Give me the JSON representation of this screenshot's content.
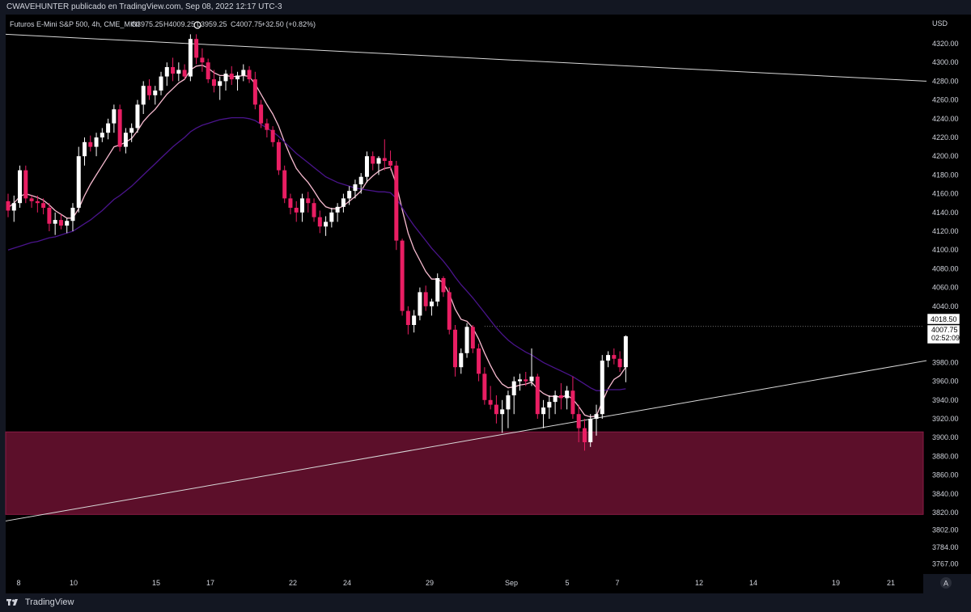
{
  "header": {
    "published_line": "CWAVEHUNTER publicado en TradingView.com, Sep 08, 2022 12:17 UTC-3"
  },
  "symbol_bar": {
    "symbol": "Futuros E-Mini S&P 500, 4h, CME_MINI",
    "open": "O3975.25",
    "high": "H4009.25",
    "low": "L3959.25",
    "close": "C4007.75",
    "change": "+32.50 (+0.82%)"
  },
  "currency_label": "USD",
  "price_tags": {
    "last_price": "4007.75",
    "countdown": "02:52:09",
    "level_line": "4018.50"
  },
  "footer": {
    "brand": "TradingView"
  },
  "axis_buttons": {
    "auto_scale": "A"
  },
  "colors": {
    "background": "#000000",
    "panel": "#131722",
    "bull_candle": "#ffffff",
    "bear_candle": "#e91e63",
    "fast_ma": "#f8bbd0",
    "slow_ma": "#4a148c",
    "zone_fill": "#5c0f2a",
    "trendline": "#d9d9d9"
  },
  "chart_data": {
    "type": "candlestick",
    "timeframe": "4h",
    "currency": "USD",
    "y_ticks": [
      4320,
      4300,
      4280,
      4260,
      4240,
      4220,
      4200,
      4180,
      4160,
      4140,
      4120,
      4100,
      4080,
      4060,
      4040,
      3980,
      3960,
      3940,
      3920,
      3900,
      3880,
      3860,
      3840,
      3820,
      3802,
      3784,
      3767
    ],
    "x_ticks": [
      "8",
      "10",
      "15",
      "17",
      "22",
      "24",
      "29",
      "Sep",
      "5",
      "7",
      "12",
      "14",
      "19",
      "21"
    ],
    "candles": [
      [
        4152,
        4160,
        4135,
        4142
      ],
      [
        4142,
        4158,
        4130,
        4150
      ],
      [
        4150,
        4190,
        4145,
        4185
      ],
      [
        4185,
        4190,
        4150,
        4155
      ],
      [
        4155,
        4158,
        4145,
        4152
      ],
      [
        4152,
        4158,
        4140,
        4150
      ],
      [
        4150,
        4155,
        4138,
        4145
      ],
      [
        4145,
        4150,
        4120,
        4128
      ],
      [
        4128,
        4140,
        4116,
        4132
      ],
      [
        4132,
        4138,
        4122,
        4126
      ],
      [
        4126,
        4134,
        4118,
        4131
      ],
      [
        4131,
        4150,
        4120,
        4145
      ],
      [
        4145,
        4210,
        4140,
        4200
      ],
      [
        4200,
        4220,
        4190,
        4215
      ],
      [
        4215,
        4222,
        4205,
        4210
      ],
      [
        4210,
        4225,
        4200,
        4220
      ],
      [
        4220,
        4230,
        4215,
        4225
      ],
      [
        4225,
        4240,
        4218,
        4235
      ],
      [
        4235,
        4255,
        4225,
        4250
      ],
      [
        4250,
        4255,
        4205,
        4210
      ],
      [
        4210,
        4230,
        4203,
        4225
      ],
      [
        4225,
        4235,
        4215,
        4230
      ],
      [
        4230,
        4260,
        4225,
        4255
      ],
      [
        4255,
        4280,
        4245,
        4275
      ],
      [
        4275,
        4282,
        4260,
        4265
      ],
      [
        4265,
        4275,
        4255,
        4270
      ],
      [
        4270,
        4290,
        4265,
        4285
      ],
      [
        4285,
        4300,
        4275,
        4295
      ],
      [
        4295,
        4305,
        4280,
        4288
      ],
      [
        4288,
        4300,
        4280,
        4292
      ],
      [
        4292,
        4298,
        4282,
        4285
      ],
      [
        4285,
        4330,
        4280,
        4325
      ],
      [
        4325,
        4330,
        4298,
        4305
      ],
      [
        4305,
        4315,
        4290,
        4300
      ],
      [
        4300,
        4304,
        4278,
        4282
      ],
      [
        4282,
        4292,
        4268,
        4275
      ],
      [
        4275,
        4285,
        4260,
        4280
      ],
      [
        4280,
        4292,
        4270,
        4288
      ],
      [
        4288,
        4296,
        4276,
        4282
      ],
      [
        4282,
        4290,
        4270,
        4286
      ],
      [
        4286,
        4298,
        4280,
        4292
      ],
      [
        4292,
        4296,
        4278,
        4282
      ],
      [
        4282,
        4290,
        4250,
        4255
      ],
      [
        4255,
        4260,
        4230,
        4235
      ],
      [
        4235,
        4240,
        4220,
        4228
      ],
      [
        4228,
        4232,
        4210,
        4215
      ],
      [
        4215,
        4218,
        4180,
        4185
      ],
      [
        4185,
        4190,
        4150,
        4155
      ],
      [
        4155,
        4160,
        4138,
        4145
      ],
      [
        4145,
        4152,
        4130,
        4140
      ],
      [
        4140,
        4160,
        4130,
        4155
      ],
      [
        4155,
        4162,
        4140,
        4150
      ],
      [
        4150,
        4155,
        4130,
        4135
      ],
      [
        4135,
        4142,
        4118,
        4125
      ],
      [
        4125,
        4136,
        4115,
        4130
      ],
      [
        4130,
        4145,
        4124,
        4140
      ],
      [
        4140,
        4150,
        4130,
        4146
      ],
      [
        4146,
        4160,
        4140,
        4155
      ],
      [
        4155,
        4168,
        4148,
        4163
      ],
      [
        4163,
        4175,
        4155,
        4170
      ],
      [
        4170,
        4182,
        4160,
        4178
      ],
      [
        4178,
        4205,
        4172,
        4200
      ],
      [
        4200,
        4205,
        4185,
        4192
      ],
      [
        4192,
        4200,
        4180,
        4198
      ],
      [
        4198,
        4218,
        4185,
        4195
      ],
      [
        4195,
        4206,
        4185,
        4190
      ],
      [
        4190,
        4195,
        4100,
        4110
      ],
      [
        4110,
        4112,
        4030,
        4035
      ],
      [
        4035,
        4040,
        4010,
        4020
      ],
      [
        4020,
        4036,
        4012,
        4030
      ],
      [
        4030,
        4060,
        4025,
        4055
      ],
      [
        4055,
        4062,
        4035,
        4040
      ],
      [
        4040,
        4048,
        4030,
        4045
      ],
      [
        4045,
        4075,
        4040,
        4070
      ],
      [
        4070,
        4072,
        4050,
        4055
      ],
      [
        4055,
        4060,
        4010,
        4015
      ],
      [
        4015,
        4020,
        3965,
        3975
      ],
      [
        3975,
        3995,
        3968,
        3990
      ],
      [
        3990,
        4022,
        3985,
        4018
      ],
      [
        4018,
        4020,
        3990,
        3995
      ],
      [
        3995,
        4000,
        3960,
        3968
      ],
      [
        3968,
        3975,
        3935,
        3940
      ],
      [
        3940,
        3955,
        3930,
        3935
      ],
      [
        3935,
        3945,
        3915,
        3925
      ],
      [
        3925,
        3940,
        3905,
        3930
      ],
      [
        3930,
        3950,
        3910,
        3945
      ],
      [
        3945,
        3965,
        3925,
        3960
      ],
      [
        3960,
        3968,
        3950,
        3962
      ],
      [
        3962,
        3970,
        3955,
        3960
      ],
      [
        3960,
        3995,
        3955,
        3965
      ],
      [
        3965,
        3968,
        3920,
        3925
      ],
      [
        3925,
        3940,
        3910,
        3932
      ],
      [
        3932,
        3945,
        3920,
        3938
      ],
      [
        3938,
        3950,
        3925,
        3945
      ],
      [
        3945,
        3958,
        3930,
        3942
      ],
      [
        3942,
        3955,
        3930,
        3950
      ],
      [
        3950,
        3965,
        3920,
        3925
      ],
      [
        3925,
        3935,
        3895,
        3910
      ],
      [
        3910,
        3920,
        3886,
        3895
      ],
      [
        3895,
        3925,
        3890,
        3920
      ],
      [
        3920,
        3935,
        3902,
        3925
      ],
      [
        3925,
        3988,
        3920,
        3982
      ],
      [
        3982,
        3992,
        3975,
        3988
      ],
      [
        3988,
        3995,
        3978,
        3984
      ],
      [
        3984,
        3992,
        3970,
        3975
      ],
      [
        3975,
        4009,
        3959,
        4008
      ]
    ],
    "series": [
      {
        "name": "",
        "type": "moving_average",
        "role": "fast",
        "color": "#f8bbd0",
        "values": [
          4145,
          4150,
          4157,
          4160,
          4158,
          4156,
          4153,
          4148,
          4142,
          4138,
          4134,
          4134,
          4144,
          4158,
          4170,
          4180,
          4190,
          4200,
          4210,
          4212,
          4215,
          4219,
          4227,
          4237,
          4244,
          4250,
          4258,
          4266,
          4272,
          4278,
          4282,
          4292,
          4296,
          4297,
          4294,
          4289,
          4286,
          4286,
          4285,
          4285,
          4286,
          4285,
          4277,
          4266,
          4255,
          4245,
          4232,
          4215,
          4200,
          4187,
          4179,
          4172,
          4163,
          4153,
          4146,
          4144,
          4144,
          4147,
          4152,
          4157,
          4163,
          4173,
          4179,
          4184,
          4187,
          4188,
          4170,
          4143,
          4118,
          4101,
          4089,
          4077,
          4069,
          4069,
          4065,
          4053,
          4037,
          4026,
          4024,
          4017,
          4005,
          3990,
          3977,
          3965,
          3957,
          3953,
          3954,
          3956,
          3957,
          3959,
          3952,
          3947,
          3944,
          3944,
          3943,
          3945,
          3941,
          3933,
          3924,
          3922,
          3923,
          3938,
          3952,
          3962,
          3966,
          3975
        ]
      },
      {
        "name": "",
        "type": "moving_average",
        "role": "slow",
        "color": "#4a148c",
        "values": [
          4100,
          4102,
          4104,
          4106,
          4108,
          4109,
          4111,
          4113,
          4114,
          4116,
          4118,
          4120,
          4124,
          4128,
          4132,
          4137,
          4142,
          4148,
          4154,
          4158,
          4163,
          4168,
          4174,
          4180,
          4186,
          4192,
          4198,
          4204,
          4210,
          4215,
          4220,
          4226,
          4230,
          4233,
          4235,
          4237,
          4239,
          4240,
          4241,
          4241,
          4241,
          4240,
          4238,
          4234,
          4230,
          4226,
          4221,
          4215,
          4209,
          4203,
          4198,
          4193,
          4188,
          4183,
          4178,
          4175,
          4172,
          4170,
          4168,
          4166,
          4165,
          4164,
          4163,
          4162,
          4162,
          4161,
          4155,
          4145,
          4135,
          4126,
          4118,
          4110,
          4102,
          4095,
          4088,
          4080,
          4071,
          4063,
          4056,
          4049,
          4041,
          4033,
          4025,
          4017,
          4010,
          4004,
          3999,
          3995,
          3991,
          3988,
          3984,
          3980,
          3977,
          3974,
          3971,
          3968,
          3965,
          3961,
          3957,
          3953,
          3950,
          3950,
          3951,
          3951,
          3951,
          3952
        ]
      }
    ],
    "support_zone": {
      "from": 3818,
      "to": 3906
    },
    "trendlines": [
      {
        "x0": 0,
        "y0": 4330,
        "x1": 1138,
        "y1": 4280
      },
      {
        "x0": 0,
        "y0": 3811,
        "x1": 1138,
        "y1": 3982
      }
    ],
    "level_line": 4018.5,
    "legend": "none",
    "grid": false
  }
}
